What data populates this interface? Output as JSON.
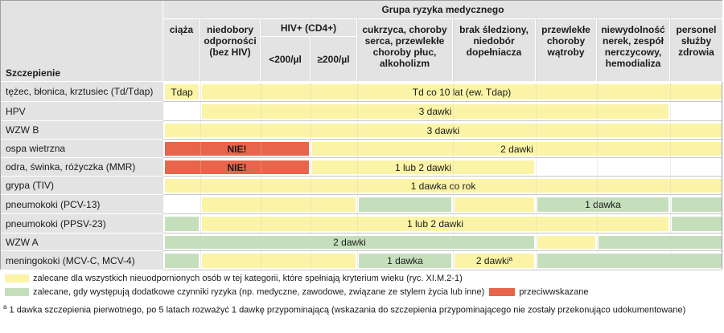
{
  "header": {
    "group_title": "Grupa ryzyka medycznego",
    "row_heading": "Szczepienie",
    "columns": [
      {
        "key": "pregnancy",
        "label": "ciąża"
      },
      {
        "key": "immuno",
        "label": "niedobory odporności (bez HIV)"
      },
      {
        "key": "hiv",
        "label": "HIV+ (CD4+)"
      },
      {
        "key": "chronic",
        "label": "cukrzyca, choroby serca, przewlekłe choroby płuc, alkoholizm"
      },
      {
        "key": "asplenia",
        "label": "brak śledziony, niedobór dopełniacza"
      },
      {
        "key": "liver",
        "label": "przewlekłe choroby wątroby"
      },
      {
        "key": "renal",
        "label": "niewydolność nerek, zespół nerczycowy, hemodializa"
      },
      {
        "key": "health",
        "label": "personel służby zdrowia"
      }
    ],
    "hiv_sub": [
      "<200/µl",
      "≥200/µl"
    ]
  },
  "rows": [
    {
      "label": "tężec, błonica, krztusiec (Td/Tdap)",
      "cells": [
        {
          "from": 0,
          "to": 1,
          "color": "yellow",
          "text": "Tdap"
        },
        {
          "from": 1,
          "to": 9,
          "color": "yellow",
          "text": "Td co 10 lat (ew. Tdap)"
        }
      ]
    },
    {
      "label": "HPV",
      "cells": [
        {
          "from": 1,
          "to": 8,
          "color": "yellow",
          "text": "3 dawki"
        }
      ]
    },
    {
      "label": "WZW B",
      "cells": [
        {
          "from": 0,
          "to": 9,
          "color": "yellow",
          "text": "3 dawki"
        }
      ]
    },
    {
      "label": "ospa wietrzna",
      "cells": [
        {
          "from": 0,
          "to": 3,
          "color": "red",
          "text": "NIE!"
        },
        {
          "from": 3,
          "to": 9,
          "color": "yellow",
          "text": "2 dawki"
        }
      ]
    },
    {
      "label": "odra, świnka, różyczka (MMR)",
      "cells": [
        {
          "from": 0,
          "to": 3,
          "color": "red",
          "text": "NIE!"
        },
        {
          "from": 3,
          "to": 6,
          "color": "yellow",
          "text": "1 lub 2 dawki"
        }
      ]
    },
    {
      "label": "grypa (TIV)",
      "cells": [
        {
          "from": 0,
          "to": 9,
          "color": "yellow",
          "text": "1 dawka co rok"
        }
      ]
    },
    {
      "label": "pneumokoki (PCV-13)",
      "cells": [
        {
          "from": 1,
          "to": 4,
          "color": "yellow",
          "text": ""
        },
        {
          "from": 4,
          "to": 5,
          "color": "green",
          "text": ""
        },
        {
          "from": 5,
          "to": 6,
          "color": "yellow",
          "text": ""
        },
        {
          "from": 6,
          "to": 8,
          "color": "green",
          "text": "1 dawka"
        },
        {
          "from": 8,
          "to": 9,
          "color": "green",
          "text": ""
        }
      ]
    },
    {
      "label": "pneumokoki (PPSV-23)",
      "cells": [
        {
          "from": 0,
          "to": 1,
          "color": "green",
          "text": ""
        },
        {
          "from": 1,
          "to": 8,
          "color": "yellow",
          "text": "1 lub 2 dawki"
        },
        {
          "from": 8,
          "to": 9,
          "color": "green",
          "text": ""
        }
      ]
    },
    {
      "label": "WZW A",
      "cells": [
        {
          "from": 0,
          "to": 6,
          "color": "green",
          "text": "2 dawki"
        },
        {
          "from": 6,
          "to": 7,
          "color": "yellow",
          "text": ""
        },
        {
          "from": 7,
          "to": 9,
          "color": "green",
          "text": ""
        }
      ]
    },
    {
      "label": "meningokoki (MCV-C, MCV-4)",
      "cells": [
        {
          "from": 0,
          "to": 1,
          "color": "green",
          "text": ""
        },
        {
          "from": 1,
          "to": 4,
          "color": "yellow",
          "text": ""
        },
        {
          "from": 4,
          "to": 5,
          "color": "green",
          "text": "1 dawka"
        },
        {
          "from": 5,
          "to": 6,
          "color": "yellow",
          "text": "2 dawki",
          "sup": "a"
        },
        {
          "from": 6,
          "to": 9,
          "color": "green",
          "text": ""
        }
      ]
    }
  ],
  "legend": {
    "yellow": "zalecane dla wszystkich nieuodpornionych osób w tej kategorii, które spełniają kryterium wieku (ryc. XI.M.2-1)",
    "green": "zalecane, gdy występują dodatkowe czynniki ryzyka (np. medyczne, zawodowe, związane ze stylem życia lub inne)",
    "red": "przeciwwskazane"
  },
  "footnote": {
    "mark": "a",
    "text": "1 dawka szczepienia pierwotnego, po 5 latach rozważyć 1 dawkę przypominającą (wskazania do szczepienia przypominającego nie zostały przekonująco udokumentowane)"
  },
  "colors": {
    "yellow": "#fbf4a7",
    "green": "#c5dfbd",
    "red": "#e8644a",
    "header": "#e3e3e3"
  }
}
